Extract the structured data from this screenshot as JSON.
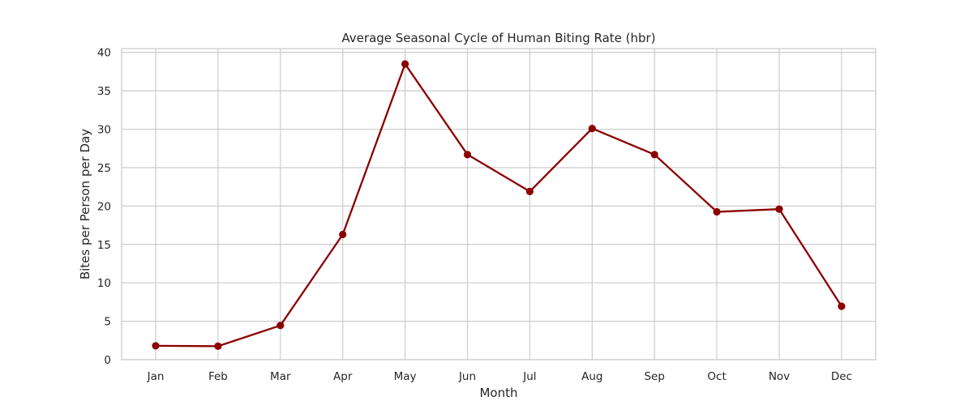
{
  "chart_data": {
    "type": "line",
    "title": "Average Seasonal Cycle of Human Biting Rate (hbr)",
    "xlabel": "Month",
    "ylabel": "Bites per Person per Day",
    "categories": [
      "Jan",
      "Feb",
      "Mar",
      "Apr",
      "May",
      "Jun",
      "Jul",
      "Aug",
      "Sep",
      "Oct",
      "Nov",
      "Dec"
    ],
    "series": [
      {
        "values": [
          1.8,
          1.75,
          4.45,
          16.3,
          38.5,
          26.7,
          21.9,
          30.1,
          26.7,
          19.25,
          19.6,
          6.95
        ],
        "color": "#8b0000"
      }
    ],
    "ylim": [
      0,
      40.5
    ],
    "yticks": [
      0,
      5,
      10,
      15,
      20,
      25,
      30,
      35,
      40
    ],
    "grid": true,
    "legend": "none"
  }
}
